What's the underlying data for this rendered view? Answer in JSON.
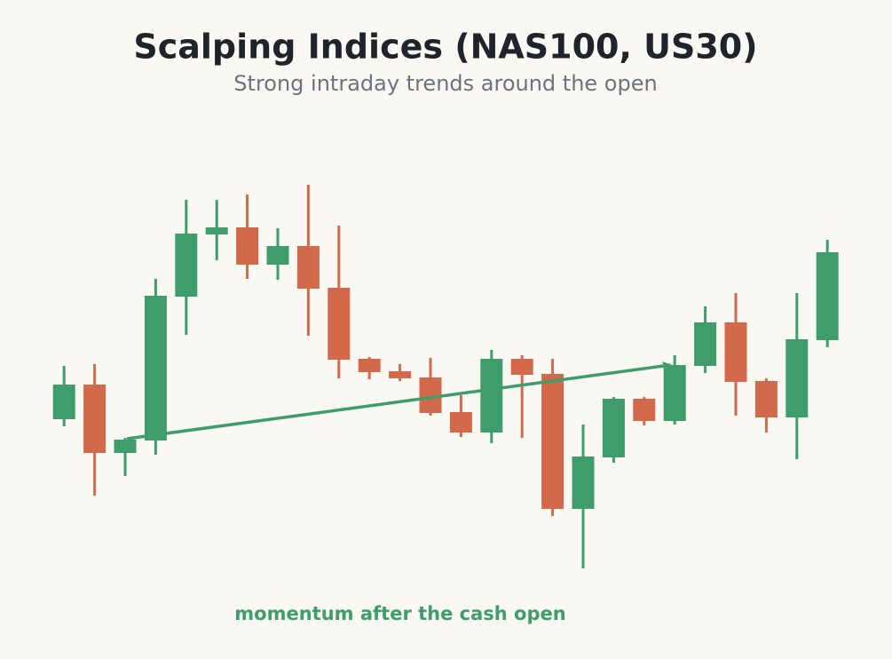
{
  "chart_data": {
    "type": "candlestick",
    "title": "Scalping Indices (NAS100, US30)",
    "subtitle": "Strong intraday trends around the open",
    "annotation": "momentum after the cash open",
    "open": [
      228,
      267,
      190,
      204,
      366,
      436,
      444,
      402,
      423,
      376,
      296,
      282,
      275,
      236,
      213,
      296,
      279,
      127,
      185,
      251,
      226,
      288,
      337,
      271,
      230,
      317
    ],
    "high": [
      288,
      290,
      207,
      386,
      475,
      475,
      481,
      443,
      492,
      446,
      298,
      290,
      297,
      255,
      306,
      300,
      296,
      222,
      253,
      253,
      300,
      355,
      370,
      274,
      370,
      430
    ],
    "low": [
      220,
      142,
      164,
      188,
      323,
      407,
      386,
      385,
      322,
      274,
      273,
      271,
      232,
      208,
      201,
      207,
      119,
      60,
      179,
      221,
      222,
      280,
      232,
      213,
      183,
      309
    ],
    "close": [
      267,
      190,
      205,
      367,
      437,
      444,
      402,
      423,
      375,
      295,
      281,
      274,
      235,
      213,
      296,
      278,
      127,
      186,
      251,
      226,
      289,
      337,
      270,
      230,
      318,
      416
    ],
    "up_color": "#3f9d6c",
    "down_color": "#d2694b",
    "ylim": [
      0,
      600
    ]
  }
}
